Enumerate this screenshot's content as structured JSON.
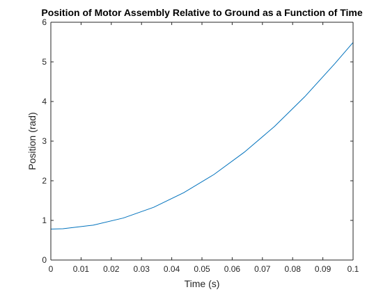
{
  "chart_data": {
    "type": "line",
    "title": "Position of Motor Assembly Relative to Ground as a Function of Time",
    "xlabel": "Time (s)",
    "ylabel": "Position (rad)",
    "xlim": [
      0,
      0.1
    ],
    "ylim": [
      0,
      6
    ],
    "xticks": [
      0,
      0.01,
      0.02,
      0.03,
      0.04,
      0.05,
      0.06,
      0.07,
      0.08,
      0.09,
      0.1
    ],
    "xtick_labels": [
      "0",
      "0.01",
      "0.02",
      "0.03",
      "0.04",
      "0.05",
      "0.06",
      "0.07",
      "0.08",
      "0.09",
      "0.1"
    ],
    "yticks": [
      0,
      1,
      2,
      3,
      4,
      5,
      6
    ],
    "ytick_labels": [
      "0",
      "1",
      "2",
      "3",
      "4",
      "5",
      "6"
    ],
    "grid": false,
    "box": true,
    "series": [
      {
        "color": "#0072bd",
        "x": [
          0,
          0.004,
          0.014,
          0.024,
          0.034,
          0.044,
          0.054,
          0.064,
          0.074,
          0.084,
          0.094,
          0.1
        ],
        "y": [
          0.78,
          0.79,
          0.88,
          1.06,
          1.33,
          1.7,
          2.16,
          2.72,
          3.37,
          4.12,
          4.96,
          5.49
        ]
      }
    ]
  }
}
